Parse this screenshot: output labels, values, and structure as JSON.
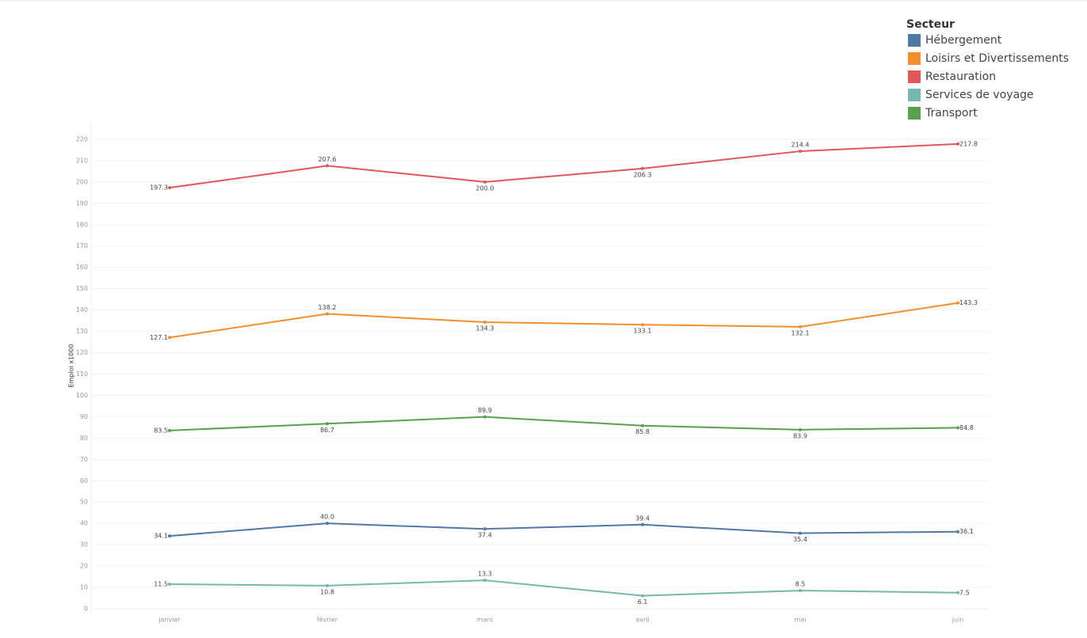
{
  "chart_data": {
    "type": "line",
    "y_label": "Emploi x1000",
    "legend_title": "Secteur",
    "legend": "top-right",
    "grid": true,
    "categories": [
      "janvier",
      "février",
      "mars",
      "avril",
      "mai",
      "juin"
    ],
    "ylim": [
      -2,
      228
    ],
    "yticks": [
      0,
      10,
      20,
      30,
      40,
      50,
      60,
      70,
      80,
      90,
      100,
      110,
      120,
      130,
      140,
      150,
      160,
      170,
      180,
      190,
      200,
      210,
      220
    ],
    "series": [
      {
        "name": "Hébergement",
        "color": "#4e79a7",
        "values": [
          34.1,
          40.0,
          37.4,
          39.4,
          35.4,
          36.1
        ],
        "value_labels": [
          "34.1",
          "40.0",
          "37.4",
          "39.4",
          "35.4",
          "36.1"
        ]
      },
      {
        "name": "Loisirs et Divertissements",
        "color": "#f28e2b",
        "values": [
          127.1,
          138.2,
          134.3,
          133.1,
          132.1,
          143.3
        ],
        "value_labels": [
          "127.1",
          "138.2",
          "134.3",
          "133.1",
          "132.1",
          "143.3"
        ]
      },
      {
        "name": "Restauration",
        "color": "#e15759",
        "values": [
          197.3,
          207.6,
          200.0,
          206.3,
          214.4,
          217.8
        ],
        "value_labels": [
          "197.3",
          "207.6",
          "200.0",
          "206.3",
          "214.4",
          "217.8"
        ]
      },
      {
        "name": "Services de voyage",
        "color": "#76b7b2",
        "values": [
          11.5,
          10.8,
          13.3,
          6.1,
          8.5,
          7.5
        ],
        "value_labels": [
          "11.5",
          "10.8",
          "13.3",
          "6.1",
          "8.5",
          "7.5"
        ]
      },
      {
        "name": "Transport",
        "color": "#59a14f",
        "values": [
          83.5,
          86.7,
          89.9,
          85.8,
          83.9,
          84.8
        ],
        "value_labels": [
          "83.5",
          "86.7",
          "89.9",
          "85.8",
          "83.9",
          "84.8"
        ]
      }
    ]
  }
}
